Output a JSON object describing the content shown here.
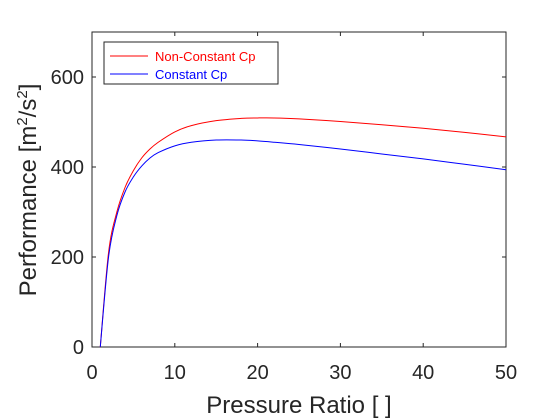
{
  "chart_data": {
    "type": "line",
    "xlabel": "Pressure Ratio [ ]",
    "ylabel_base": "Performance [m",
    "ylabel_sup1": "2",
    "ylabel_mid": "/s",
    "ylabel_sup2": "2",
    "ylabel_end": "]",
    "xlim": [
      0,
      50
    ],
    "ylim": [
      0,
      700
    ],
    "xticks": [
      0,
      10,
      20,
      30,
      40,
      50
    ],
    "yticks": [
      0,
      200,
      400,
      600
    ],
    "grid": false,
    "legend_position": "top-left",
    "series": [
      {
        "name": "Non-Constant Cp",
        "color": "#ff0000",
        "x": [
          1,
          2,
          3,
          4,
          5,
          6,
          7,
          8,
          10,
          12,
          15,
          18,
          20,
          22,
          25,
          30,
          35,
          40,
          45,
          50
        ],
        "y": [
          0,
          210,
          300,
          355,
          392,
          420,
          440,
          455,
          478,
          492,
          503,
          508,
          509,
          509,
          507,
          501,
          494,
          486,
          477,
          467
        ]
      },
      {
        "name": "Constant Cp",
        "color": "#0000ff",
        "x": [
          1,
          2,
          3,
          4,
          5,
          6,
          7,
          8,
          10,
          12,
          15,
          18,
          20,
          22,
          25,
          30,
          35,
          40,
          45,
          50
        ],
        "y": [
          0,
          200,
          292,
          345,
          378,
          402,
          420,
          432,
          447,
          455,
          460,
          460,
          458,
          455,
          450,
          440,
          429,
          418,
          406,
          394
        ]
      }
    ]
  }
}
